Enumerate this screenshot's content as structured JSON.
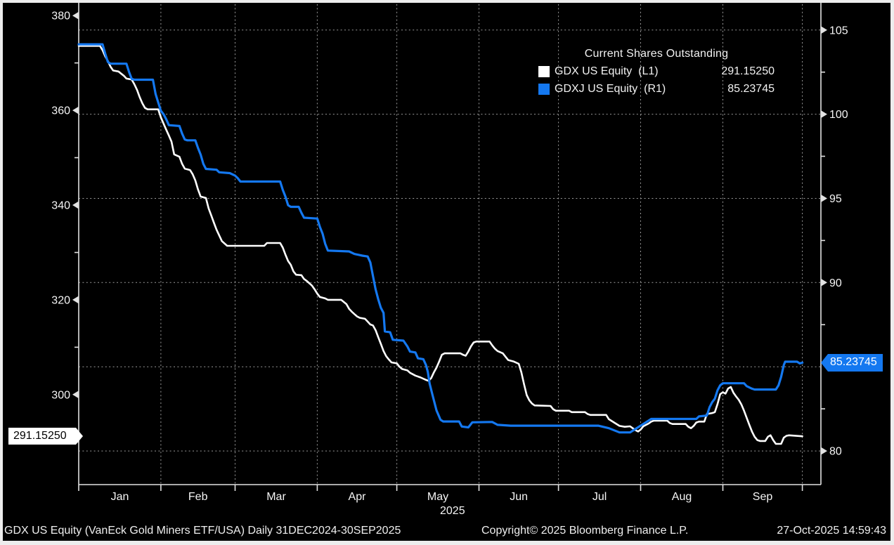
{
  "colors": {
    "background": "#000000",
    "frame": "#ededed",
    "axis_line": "#e2e2e2",
    "grid": "#9a9a9a",
    "tick_label": "#f5f5f5",
    "gdx_line": "#ffffff",
    "gdxj_line": "#1478f0",
    "gdx_box_bg": "#ffffff",
    "gdx_box_text": "#000000",
    "gdxj_box_bg": "#1478f0",
    "gdxj_box_text": "#ffffff"
  },
  "legend": {
    "title": "Current Shares Outstanding",
    "items": [
      {
        "swatch": "#ffffff",
        "label": "GDX US Equity  (L1)",
        "value": "291.15250"
      },
      {
        "swatch": "#1478f0",
        "label": "GDXJ US Equity  (R1)",
        "value": "85.23745"
      }
    ]
  },
  "footer": {
    "left": "GDX US Equity (VanEck Gold Miners ETF/USA) Daily 31DEC2024-30SEP2025",
    "center": "Copyright© 2025 Bloomberg Finance L.P.",
    "right": "27-Oct-2025 14:59:43"
  },
  "chart_data": {
    "type": "line",
    "title": "Current Shares Outstanding",
    "x_axis": {
      "start_date": "31DEC2024",
      "end_date": "30SEP2025",
      "domain_days": [
        0,
        280
      ],
      "year_label": "2025",
      "year_label_day": 141,
      "month_boundary_days": [
        31,
        59,
        90,
        120,
        151,
        181,
        212,
        243,
        273
      ],
      "months": [
        {
          "label": "Jan",
          "day": 15.5
        },
        {
          "label": "Feb",
          "day": 45
        },
        {
          "label": "Mar",
          "day": 74.5
        },
        {
          "label": "Apr",
          "day": 105
        },
        {
          "label": "May",
          "day": 135.5
        },
        {
          "label": "Jun",
          "day": 166
        },
        {
          "label": "Jul",
          "day": 196.5
        },
        {
          "label": "Aug",
          "day": 227.5
        },
        {
          "label": "Sep",
          "day": 258
        }
      ]
    },
    "left_axis": {
      "ylim": [
        281.0,
        382.1
      ],
      "ticks": [
        380,
        360,
        340,
        320,
        300
      ],
      "minor_ticks": [
        370,
        350,
        330,
        310,
        290
      ],
      "last_value": 291.2,
      "last_value_label": "291.15250"
    },
    "right_axis": {
      "ylim": [
        78.0,
        106.45
      ],
      "ticks": [
        105,
        100,
        95,
        90,
        80
      ],
      "grid_values": [
        105,
        100,
        95,
        90,
        85,
        80
      ],
      "minor_ticks": [
        102.5,
        97.5,
        92.5,
        87.5,
        82.5
      ],
      "last_value": 85.237,
      "last_value_label": "85.23745"
    },
    "series": [
      {
        "name": "GDX US Equity",
        "axis": "L1",
        "color": "#ffffff",
        "width": 2.6,
        "points": [
          [
            0,
            373.6
          ],
          [
            8,
            373.6
          ],
          [
            9,
            372.7
          ],
          [
            10,
            371.4
          ],
          [
            11,
            370.4
          ],
          [
            12,
            369.2
          ],
          [
            13,
            368.4
          ],
          [
            15,
            368.2
          ],
          [
            17,
            367.3
          ],
          [
            18,
            366.7
          ],
          [
            20,
            366.5
          ],
          [
            21,
            365.5
          ],
          [
            22,
            364.3
          ],
          [
            23,
            362.8
          ],
          [
            24,
            361.5
          ],
          [
            25,
            360.5
          ],
          [
            26,
            360.2
          ],
          [
            30,
            360.2
          ],
          [
            31,
            358.5
          ],
          [
            32,
            357.2
          ],
          [
            33,
            355.9
          ],
          [
            34,
            354.7
          ],
          [
            35,
            353.4
          ],
          [
            36,
            350.7
          ],
          [
            38,
            350.2
          ],
          [
            39,
            348.7
          ],
          [
            40,
            347.7
          ],
          [
            42,
            347.4
          ],
          [
            43,
            346.5
          ],
          [
            44,
            345.2
          ],
          [
            45,
            343.3
          ],
          [
            46,
            341.8
          ],
          [
            48,
            341.5
          ],
          [
            49,
            339.3
          ],
          [
            50,
            337.8
          ],
          [
            51,
            336.3
          ],
          [
            52,
            334.8
          ],
          [
            53,
            333.6
          ],
          [
            54,
            332.4
          ],
          [
            56,
            331.4
          ],
          [
            70,
            331.4
          ],
          [
            71,
            332.0
          ],
          [
            76,
            332.0
          ],
          [
            77,
            331.0
          ],
          [
            78,
            329.5
          ],
          [
            79,
            328.2
          ],
          [
            80,
            327.4
          ],
          [
            81,
            326.0
          ],
          [
            82,
            325.3
          ],
          [
            84,
            325.2
          ],
          [
            85,
            324.4
          ],
          [
            86,
            324.0
          ],
          [
            88,
            323.0
          ],
          [
            89,
            322.2
          ],
          [
            90,
            321.3
          ],
          [
            91,
            320.6
          ],
          [
            93,
            320.3
          ],
          [
            94,
            320.0
          ],
          [
            99,
            320.0
          ],
          [
            101,
            319.1
          ],
          [
            102,
            318.1
          ],
          [
            103,
            317.5
          ],
          [
            104,
            317.0
          ],
          [
            105,
            316.5
          ],
          [
            106,
            316.2
          ],
          [
            108,
            316.0
          ],
          [
            109,
            315.4
          ],
          [
            110,
            314.8
          ],
          [
            111,
            314.6
          ],
          [
            112,
            313.6
          ],
          [
            113,
            312.1
          ],
          [
            114,
            310.7
          ],
          [
            115,
            309.2
          ],
          [
            116,
            308.1
          ],
          [
            117,
            307.4
          ],
          [
            118,
            306.8
          ],
          [
            120,
            306.6
          ],
          [
            121,
            305.9
          ],
          [
            122,
            305.4
          ],
          [
            124,
            305.1
          ],
          [
            125,
            304.6
          ],
          [
            127,
            304.0
          ],
          [
            129,
            303.6
          ],
          [
            131,
            303.1
          ],
          [
            132,
            302.9
          ],
          [
            133,
            303.5
          ],
          [
            134,
            304.7
          ],
          [
            135,
            305.7
          ],
          [
            136,
            307.0
          ],
          [
            137,
            308.4
          ],
          [
            138,
            308.7
          ],
          [
            144,
            308.7
          ],
          [
            145,
            308.4
          ],
          [
            146,
            308.2
          ],
          [
            147,
            309.1
          ],
          [
            148,
            310.2
          ],
          [
            149,
            311.0
          ],
          [
            150,
            311.2
          ],
          [
            155,
            311.2
          ],
          [
            156,
            310.4
          ],
          [
            157,
            309.7
          ],
          [
            158,
            309.2
          ],
          [
            160,
            308.7
          ],
          [
            162,
            307.3
          ],
          [
            164,
            307.0
          ],
          [
            166,
            306.5
          ],
          [
            167,
            304.7
          ],
          [
            168,
            302.2
          ],
          [
            169,
            299.9
          ],
          [
            170,
            298.8
          ],
          [
            171,
            298.1
          ],
          [
            172,
            297.7
          ],
          [
            178,
            297.6
          ],
          [
            179,
            296.9
          ],
          [
            180,
            296.6
          ],
          [
            185,
            296.6
          ],
          [
            186,
            296.3
          ],
          [
            191,
            296.3
          ],
          [
            192,
            295.9
          ],
          [
            193,
            295.7
          ],
          [
            199,
            295.7
          ],
          [
            200,
            294.8
          ],
          [
            202,
            294.1
          ],
          [
            204,
            293.4
          ],
          [
            206,
            293.2
          ],
          [
            208,
            293.3
          ],
          [
            209,
            292.9
          ],
          [
            210,
            292.5
          ],
          [
            211,
            292.2
          ],
          [
            212,
            292.6
          ],
          [
            213,
            293.3
          ],
          [
            215,
            293.9
          ],
          [
            216,
            294.3
          ],
          [
            217,
            294.5
          ],
          [
            222,
            294.5
          ],
          [
            223,
            294.0
          ],
          [
            224,
            293.8
          ],
          [
            229,
            293.8
          ],
          [
            230,
            293.2
          ],
          [
            231,
            292.9
          ],
          [
            232,
            293.4
          ],
          [
            233,
            294.1
          ],
          [
            234,
            294.3
          ],
          [
            236,
            294.3
          ],
          [
            237,
            295.9
          ],
          [
            239,
            296.1
          ],
          [
            240,
            296.3
          ],
          [
            241,
            298.0
          ],
          [
            242,
            300.1
          ],
          [
            243,
            300.5
          ],
          [
            244,
            300.2
          ],
          [
            245,
            301.3
          ],
          [
            246,
            301.6
          ],
          [
            247,
            300.4
          ],
          [
            248,
            299.6
          ],
          [
            249,
            298.9
          ],
          [
            250,
            297.9
          ],
          [
            251,
            296.6
          ],
          [
            252,
            295.1
          ],
          [
            253,
            293.6
          ],
          [
            254,
            292.2
          ],
          [
            255,
            291.1
          ],
          [
            256,
            290.4
          ],
          [
            257,
            290.2
          ],
          [
            259,
            290.2
          ],
          [
            260,
            291.1
          ],
          [
            261,
            291.4
          ],
          [
            262,
            290.4
          ],
          [
            263,
            289.6
          ],
          [
            265,
            289.6
          ],
          [
            266,
            290.9
          ],
          [
            267,
            291.3
          ],
          [
            268,
            291.4
          ],
          [
            273,
            291.2
          ]
        ]
      },
      {
        "name": "GDXJ US Equity",
        "axis": "R1",
        "color": "#1478f0",
        "width": 3.2,
        "points": [
          [
            0,
            104.15
          ],
          [
            9,
            104.15
          ],
          [
            10,
            103.6
          ],
          [
            11,
            103.1
          ],
          [
            12,
            103.0
          ],
          [
            18,
            103.0
          ],
          [
            19,
            102.5
          ],
          [
            20,
            102.1
          ],
          [
            21,
            102.05
          ],
          [
            28,
            102.05
          ],
          [
            29,
            101.2
          ],
          [
            30,
            100.7
          ],
          [
            31,
            100.2
          ],
          [
            32,
            100.0
          ],
          [
            33,
            99.7
          ],
          [
            34,
            99.35
          ],
          [
            38,
            99.3
          ],
          [
            39,
            98.85
          ],
          [
            40,
            98.5
          ],
          [
            41,
            98.45
          ],
          [
            44,
            98.45
          ],
          [
            45,
            98.0
          ],
          [
            46,
            97.6
          ],
          [
            47,
            97.05
          ],
          [
            48,
            96.75
          ],
          [
            52,
            96.7
          ],
          [
            53,
            96.55
          ],
          [
            57,
            96.5
          ],
          [
            59,
            96.35
          ],
          [
            60,
            96.2
          ],
          [
            61,
            96.0
          ],
          [
            76,
            96.0
          ],
          [
            77,
            95.5
          ],
          [
            78,
            95.1
          ],
          [
            79,
            94.6
          ],
          [
            80,
            94.5
          ],
          [
            83,
            94.5
          ],
          [
            84,
            94.15
          ],
          [
            85,
            93.85
          ],
          [
            90,
            93.8
          ],
          [
            91,
            93.3
          ],
          [
            92,
            92.9
          ],
          [
            93,
            92.3
          ],
          [
            94,
            91.9
          ],
          [
            102,
            91.85
          ],
          [
            104,
            91.7
          ],
          [
            107,
            91.6
          ],
          [
            109,
            91.55
          ],
          [
            110,
            91.2
          ],
          [
            111,
            90.4
          ],
          [
            112,
            89.6
          ],
          [
            113,
            89.0
          ],
          [
            114,
            88.5
          ],
          [
            115,
            88.2
          ],
          [
            115.5,
            87.1
          ],
          [
            117.5,
            87.05
          ],
          [
            118.5,
            86.6
          ],
          [
            122.5,
            86.55
          ],
          [
            124,
            86.2
          ],
          [
            125,
            85.9
          ],
          [
            127,
            85.85
          ],
          [
            128,
            85.5
          ],
          [
            130,
            85.45
          ],
          [
            131,
            85.1
          ],
          [
            131.7,
            84.7
          ],
          [
            132.4,
            84.0
          ],
          [
            133.5,
            83.3
          ],
          [
            135,
            82.4
          ],
          [
            136.5,
            81.85
          ],
          [
            137.5,
            81.75
          ],
          [
            143.5,
            81.75
          ],
          [
            144.5,
            81.45
          ],
          [
            147,
            81.4
          ],
          [
            148.5,
            81.7
          ],
          [
            156,
            81.72
          ],
          [
            158,
            81.55
          ],
          [
            163,
            81.5
          ],
          [
            196,
            81.5
          ],
          [
            200,
            81.35
          ],
          [
            204,
            81.1
          ],
          [
            208,
            81.1
          ],
          [
            210,
            81.3
          ],
          [
            213,
            81.6
          ],
          [
            216,
            81.9
          ],
          [
            233,
            81.9
          ],
          [
            234,
            82.05
          ],
          [
            237,
            82.1
          ],
          [
            238,
            82.6
          ],
          [
            239,
            82.9
          ],
          [
            240,
            83.1
          ],
          [
            241,
            83.6
          ],
          [
            242,
            83.9
          ],
          [
            243,
            84.02
          ],
          [
            251,
            84.02
          ],
          [
            252,
            83.85
          ],
          [
            254,
            83.7
          ],
          [
            255,
            83.65
          ],
          [
            263,
            83.65
          ],
          [
            264,
            83.9
          ],
          [
            265,
            84.4
          ],
          [
            266,
            85.1
          ],
          [
            266.5,
            85.3
          ],
          [
            271,
            85.3
          ],
          [
            272,
            85.2
          ],
          [
            273,
            85.24
          ]
        ]
      }
    ]
  }
}
